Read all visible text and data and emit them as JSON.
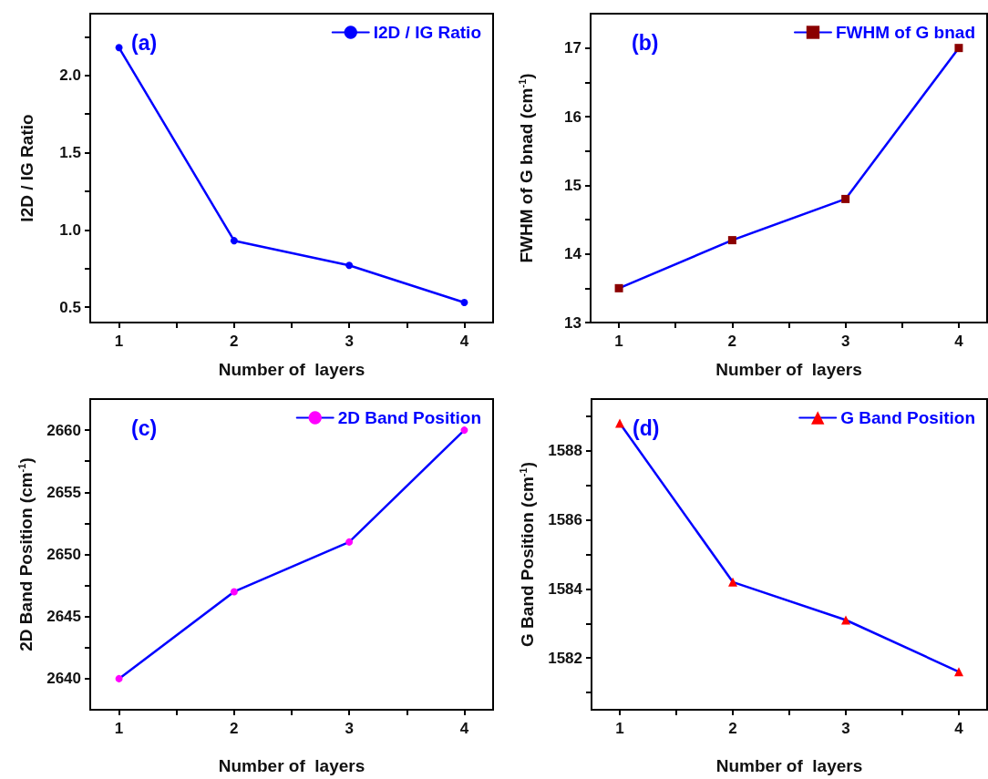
{
  "chart_data": [
    {
      "type": "line",
      "xlabel": "Number of  layers",
      "ylabel": "I2D / IG Ratio",
      "annotations": [
        "(a)"
      ],
      "legend": "top right",
      "marker": "circle",
      "line_style": "solid",
      "grid": false,
      "x": [
        1,
        2,
        3,
        4
      ],
      "xlim": [
        0.75,
        4.25
      ],
      "xticks": [
        1,
        {
          "value": 1.5,
          "label": null
        },
        2,
        {
          "value": 2.5,
          "label": null
        },
        3,
        {
          "value": 3.5,
          "label": null
        },
        4
      ],
      "ylim": [
        0.4,
        2.4
      ],
      "yticks": [
        {
          "value": 0.5,
          "label": "0.5"
        },
        {
          "value": 0.75,
          "label": null
        },
        {
          "value": 1,
          "label": "1.0"
        },
        {
          "value": 1.25,
          "label": null
        },
        {
          "value": 1.5,
          "label": "1.5"
        },
        {
          "value": 1.75,
          "label": null
        },
        {
          "value": 2,
          "label": "2.0"
        },
        {
          "value": 2.25,
          "label": null
        }
      ],
      "series": [
        {
          "name": "I2D / IG Ratio",
          "color": "#0000ff",
          "colors": [
            "#0000ff",
            "#0000ff",
            "#0000ff",
            "#0000ff"
          ],
          "values": [
            2.18,
            0.93,
            0.77,
            0.53
          ]
        }
      ]
    },
    {
      "type": "line",
      "xlabel": "Number of  layers",
      "ylabel": "FWHM of G bnad (cm$^{-1}$)",
      "annotations": [
        "(b)"
      ],
      "legend": "top right",
      "marker": "square",
      "line_style": "solid",
      "grid": false,
      "x": [
        1,
        2,
        3,
        4
      ],
      "xlim": [
        0.75,
        4.25
      ],
      "xticks": [
        1,
        {
          "value": 1.5,
          "label": null
        },
        2,
        {
          "value": 2.5,
          "label": null
        },
        3,
        {
          "value": 3.5,
          "label": null
        },
        4
      ],
      "ylim": [
        13,
        17.5
      ],
      "yticks": [
        13,
        {
          "value": 13.5,
          "label": null
        },
        14,
        {
          "value": 14.5,
          "label": null
        },
        15,
        {
          "value": 15.5,
          "label": null
        },
        16,
        {
          "value": 16.5,
          "label": null
        },
        17
      ],
      "series": [
        {
          "name": "FWHM of G bnad",
          "color": "#0000ff",
          "colors": [
            "#8b0000",
            "#8b0000",
            "#8b0000",
            "#8b0000"
          ],
          "values": [
            13.5,
            14.2,
            14.8,
            17.0
          ]
        }
      ]
    },
    {
      "type": "line",
      "xlabel": "Number of  layers",
      "ylabel": "2D Band Position (cm$^{-1}$)",
      "annotations": [
        "(c)"
      ],
      "legend": "top right",
      "marker": "circle",
      "line_style": "solid",
      "grid": false,
      "x": [
        1,
        2,
        3,
        4
      ],
      "xlim": [
        0.75,
        4.25
      ],
      "xticks": [
        1,
        {
          "value": 1.5,
          "label": null
        },
        2,
        {
          "value": 2.5,
          "label": null
        },
        3,
        {
          "value": 3.5,
          "label": null
        },
        4
      ],
      "ylim": [
        2637.5,
        2662.5
      ],
      "yticks": [
        2640,
        {
          "value": 2642.5,
          "label": null
        },
        2645,
        {
          "value": 2647.5,
          "label": null
        },
        2650,
        {
          "value": 2652.5,
          "label": null
        },
        2655,
        {
          "value": 2657.5,
          "label": null
        },
        2660
      ],
      "series": [
        {
          "name": "2D Band Position",
          "color": "#0000ff",
          "colors": [
            "#ff00ff",
            "#ff00ff",
            "#ff00ff",
            "#ff00ff"
          ],
          "values": [
            2640,
            2647,
            2651,
            2660
          ]
        }
      ]
    },
    {
      "type": "line",
      "xlabel": "Number of  layers",
      "ylabel": "G Band Position (cm$^{-1}$)",
      "annotations": [
        "(d)"
      ],
      "legend": "top right",
      "marker": "triangle",
      "line_style": "solid",
      "grid": false,
      "x": [
        1,
        2,
        3,
        4
      ],
      "xlim": [
        0.75,
        4.25
      ],
      "xticks": [
        1,
        {
          "value": 1.5,
          "label": null
        },
        2,
        {
          "value": 2.5,
          "label": null
        },
        3,
        {
          "value": 3.5,
          "label": null
        },
        4
      ],
      "ylim": [
        1580.5,
        1589.5
      ],
      "yticks": [
        {
          "value": 1581,
          "label": null
        },
        1582,
        {
          "value": 1583,
          "label": null
        },
        1584,
        {
          "value": 1585,
          "label": null
        },
        1586,
        {
          "value": 1587,
          "label": null
        },
        1588,
        {
          "value": 1589,
          "label": null
        }
      ],
      "series": [
        {
          "name": "G Band Position",
          "color": "#0000ff",
          "colors": [
            "#ff0000",
            "#ff0000",
            "#ff0000",
            "#ff0000"
          ],
          "values": [
            1588.8,
            1584.2,
            1583.1,
            1581.6
          ]
        }
      ]
    }
  ]
}
